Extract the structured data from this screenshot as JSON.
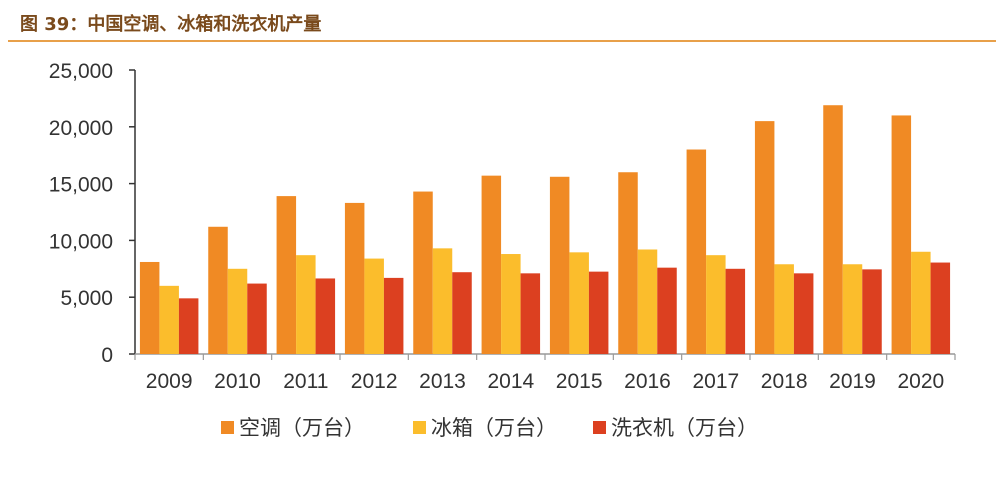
{
  "figure_title": "图 39：中国空调、冰箱和洗衣机产量",
  "chart_data": {
    "type": "bar",
    "title": "",
    "xlabel": "",
    "ylabel": "",
    "categories": [
      "2009",
      "2010",
      "2011",
      "2012",
      "2013",
      "2014",
      "2015",
      "2016",
      "2017",
      "2018",
      "2019",
      "2020"
    ],
    "ylim": [
      0,
      25000
    ],
    "yticks": [
      0,
      5000,
      10000,
      15000,
      20000,
      25000
    ],
    "ytick_labels": [
      "0",
      "5,000",
      "10,000",
      "15,000",
      "20,000",
      "25,000"
    ],
    "grid": false,
    "legend_position": "bottom",
    "series": [
      {
        "name": "空调（万台）",
        "color": "#f08a24",
        "values": [
          8100,
          11200,
          13900,
          13300,
          14300,
          15700,
          15600,
          16000,
          18000,
          20500,
          21900,
          21000
        ]
      },
      {
        "name": "冰箱（万台）",
        "color": "#fbbd2c",
        "values": [
          6000,
          7500,
          8700,
          8400,
          9300,
          8800,
          8950,
          9200,
          8700,
          7900,
          7900,
          9000
        ]
      },
      {
        "name": "洗衣机（万台）",
        "color": "#dc4020",
        "values": [
          4900,
          6200,
          6650,
          6700,
          7200,
          7100,
          7250,
          7600,
          7500,
          7100,
          7450,
          8050
        ]
      }
    ]
  }
}
